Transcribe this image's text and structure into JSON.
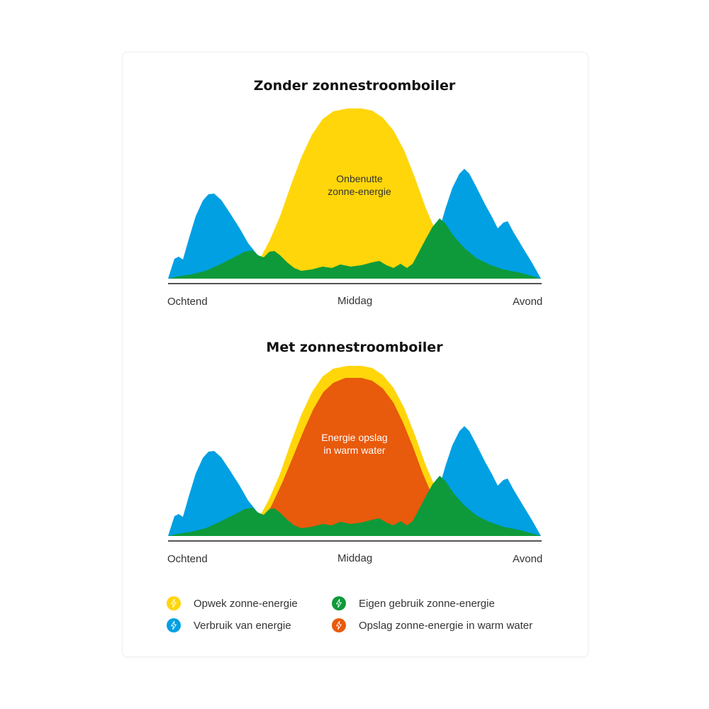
{
  "colors": {
    "opwek": "#FFD60A",
    "verbruik": "#00A0E3",
    "eigen": "#0E9A3A",
    "opslag": "#E85A0C",
    "axis": "#555555"
  },
  "diagram_top": {
    "title": "Zonder zonnestroomboiler",
    "area_label_line1": "Onbenutte",
    "area_label_line2": "zonne-energie",
    "x_labels": [
      "Ochtend",
      "Middag",
      "Avond"
    ]
  },
  "diagram_bottom": {
    "title": "Met zonnestroomboiler",
    "area_label_line1": "Energie opslag",
    "area_label_line2": "in warm water",
    "x_labels": [
      "Ochtend",
      "Middag",
      "Avond"
    ]
  },
  "legend": [
    {
      "label": "Opwek zonne-energie",
      "color_key": "opwek",
      "icon": "bolt-icon"
    },
    {
      "label": "Eigen gebruik zonne-energie",
      "color_key": "eigen",
      "icon": "bolt-icon"
    },
    {
      "label": "Verbruik van energie",
      "color_key": "verbruik",
      "icon": "bolt-icon"
    },
    {
      "label": "Opslag zonne-energie in warm water",
      "color_key": "opslag",
      "icon": "bolt-icon"
    }
  ]
}
